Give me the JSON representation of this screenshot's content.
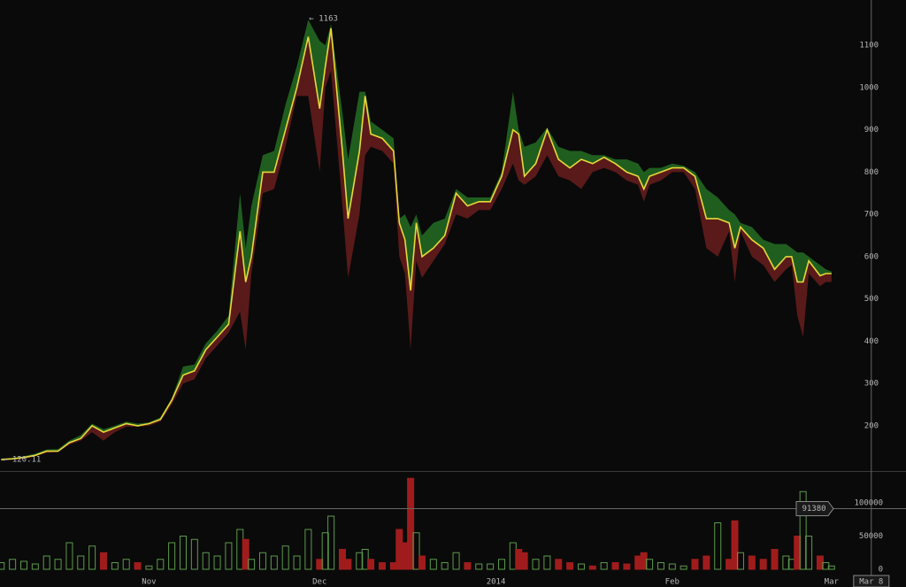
{
  "chart_data": [
    {
      "type": "line",
      "x": [
        5,
        7,
        9,
        11,
        13,
        15,
        17,
        19,
        21,
        23,
        25,
        27,
        29,
        31,
        33,
        35,
        37,
        39,
        41,
        43,
        45,
        47,
        48,
        49,
        51,
        53,
        55,
        57,
        59,
        61,
        62,
        63,
        65,
        66,
        68,
        69,
        70,
        72,
        74,
        75,
        76,
        77,
        78,
        79,
        81,
        83,
        85,
        87,
        89,
        91,
        93,
        95,
        96,
        97,
        99,
        101,
        103,
        105,
        107,
        109,
        111,
        113,
        115,
        117,
        118,
        119,
        121,
        123,
        125,
        127,
        129,
        131,
        133,
        134,
        135,
        137,
        139,
        141,
        143,
        144,
        145,
        146,
        147,
        149,
        150,
        151
      ],
      "series": [
        {
          "color": "#e8d83a",
          "values": [
            120,
            122,
            125,
            130,
            140,
            140,
            160,
            170,
            200,
            185,
            195,
            205,
            200,
            205,
            215,
            260,
            320,
            330,
            380,
            410,
            440,
            660,
            540,
            600,
            800,
            800,
            900,
            1000,
            1120,
            950,
            1050,
            1140,
            850,
            690,
            850,
            980,
            890,
            880,
            850,
            680,
            640,
            520,
            680,
            600,
            620,
            650,
            750,
            720,
            730,
            730,
            790,
            900,
            890,
            790,
            820,
            900,
            830,
            810,
            830,
            820,
            835,
            820,
            800,
            790,
            760,
            790,
            800,
            810,
            810,
            790,
            690,
            690,
            680,
            620,
            670,
            640,
            620,
            570,
            600,
            600,
            540,
            540,
            590,
            555,
            560,
            560
          ]
        },
        {
          "color": "#1f5e1f",
          "values": [
            122,
            124,
            128,
            134,
            144,
            145,
            165,
            178,
            205,
            192,
            200,
            210,
            205,
            208,
            220,
            265,
            340,
            345,
            395,
            425,
            460,
            750,
            620,
            720,
            840,
            850,
            960,
            1050,
            1160,
            1110,
            1100,
            1150,
            940,
            830,
            990,
            990,
            920,
            900,
            880,
            690,
            700,
            670,
            700,
            650,
            680,
            690,
            760,
            740,
            740,
            740,
            800,
            990,
            900,
            860,
            870,
            905,
            860,
            850,
            850,
            840,
            840,
            830,
            830,
            820,
            800,
            810,
            810,
            820,
            815,
            800,
            760,
            740,
            710,
            700,
            680,
            670,
            640,
            630,
            630,
            620,
            610,
            610,
            600,
            580,
            570,
            565
          ]
        },
        {
          "color": "#5a1a1a",
          "values": [
            118,
            120,
            122,
            128,
            136,
            138,
            155,
            165,
            185,
            165,
            185,
            198,
            198,
            200,
            210,
            250,
            300,
            310,
            360,
            390,
            420,
            470,
            380,
            560,
            750,
            760,
            860,
            980,
            980,
            800,
            1000,
            1040,
            720,
            550,
            700,
            840,
            860,
            850,
            820,
            600,
            560,
            380,
            590,
            550,
            590,
            630,
            700,
            690,
            710,
            710,
            760,
            820,
            780,
            770,
            790,
            840,
            790,
            780,
            760,
            800,
            810,
            800,
            780,
            770,
            730,
            770,
            780,
            800,
            800,
            760,
            620,
            600,
            660,
            540,
            660,
            600,
            580,
            540,
            570,
            580,
            460,
            410,
            560,
            530,
            540,
            540
          ]
        }
      ],
      "xlim": [
        4.8,
        164.1
      ],
      "ylim": [
        93,
        1207
      ],
      "yticks": [
        200,
        300,
        400,
        500,
        600,
        700,
        800,
        900,
        1000,
        1100
      ],
      "annotations": [
        {
          "label": "← 1163",
          "x": 59,
          "value": 1163
        },
        {
          "label": "← 120.11",
          "x": 5,
          "value": 120.11
        }
      ]
    },
    {
      "type": "bar",
      "x": [
        5,
        7,
        9,
        11,
        13,
        15,
        17,
        19,
        21,
        23,
        25,
        27,
        29,
        31,
        33,
        35,
        37,
        39,
        41,
        43,
        45,
        47,
        48,
        49,
        51,
        53,
        55,
        57,
        59,
        61,
        62,
        63,
        65,
        66,
        68,
        69,
        70,
        72,
        74,
        75,
        76,
        77,
        78,
        79,
        81,
        83,
        85,
        87,
        89,
        91,
        93,
        95,
        96,
        97,
        99,
        101,
        103,
        105,
        107,
        109,
        111,
        113,
        115,
        117,
        118,
        119,
        121,
        123,
        125,
        127,
        129,
        131,
        133,
        134,
        135,
        137,
        139,
        141,
        143,
        144,
        145,
        146,
        147,
        149,
        150,
        151
      ],
      "values": [
        10000,
        15000,
        12000,
        8000,
        20000,
        15000,
        40000,
        20000,
        35000,
        25000,
        10000,
        15000,
        10000,
        5000,
        15000,
        40000,
        50000,
        45000,
        25000,
        20000,
        40000,
        60000,
        45000,
        15000,
        25000,
        20000,
        35000,
        20000,
        60000,
        15000,
        55000,
        80000,
        30000,
        15000,
        25000,
        30000,
        15000,
        10000,
        10000,
        60000,
        40000,
        137000,
        55000,
        20000,
        15000,
        10000,
        25000,
        10000,
        8000,
        8000,
        15000,
        40000,
        30000,
        25000,
        15000,
        20000,
        15000,
        10000,
        8000,
        5000,
        10000,
        10000,
        8000,
        20000,
        25000,
        15000,
        10000,
        8000,
        5000,
        15000,
        20000,
        70000,
        15000,
        73000,
        25000,
        20000,
        15000,
        30000,
        20000,
        15000,
        50000,
        117000,
        50000,
        20000,
        10000,
        5000
      ],
      "up_color": "#5c9a4c",
      "down_color": "#a01c1c",
      "xlim": [
        4.8,
        164.1
      ],
      "ylim": [
        -26667,
        146667
      ],
      "yticks": [
        0,
        50000,
        100000
      ],
      "xticks": [
        {
          "value": 31,
          "label": "Nov"
        },
        {
          "value": 61,
          "label": "Dec"
        },
        {
          "value": 92,
          "label": "2014"
        },
        {
          "value": 123,
          "label": "Feb"
        },
        {
          "value": 151,
          "label": "Mar"
        }
      ],
      "crosshair_x": {
        "value": 158,
        "label": "Mar 8"
      },
      "crosshair_y": 91380
    }
  ]
}
